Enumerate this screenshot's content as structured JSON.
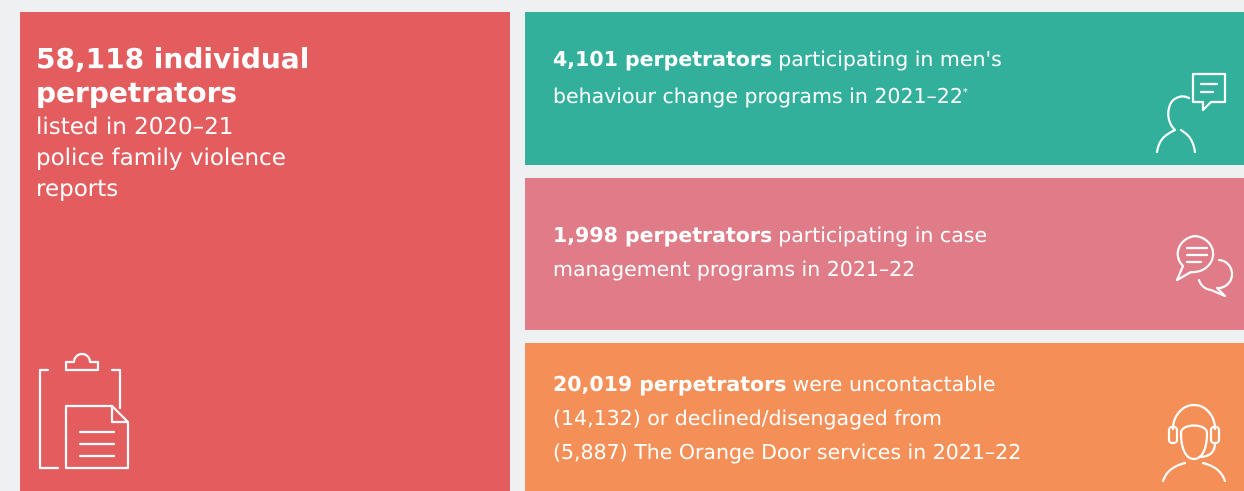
{
  "summary": {
    "headline_lines": [
      "58,118 individual",
      "perpetrators"
    ],
    "text_lines": [
      "listed in 2020–21",
      "police family violence",
      "reports"
    ]
  },
  "cards": [
    {
      "highlight": "4,101 perpetrators",
      "lines": [
        "participating in men's",
        "behaviour change programs in 2021–22"
      ],
      "note": "*"
    },
    {
      "highlight": "1,998 perpetrators",
      "lines": [
        "participating in case",
        "management programs in 2021–22"
      ]
    },
    {
      "highlight": "20,019 perpetrators",
      "lines": [
        "were uncontactable",
        "(14,132) or declined/disengaged from",
        "(5,887) The Orange Door services in 2021–22"
      ]
    }
  ]
}
